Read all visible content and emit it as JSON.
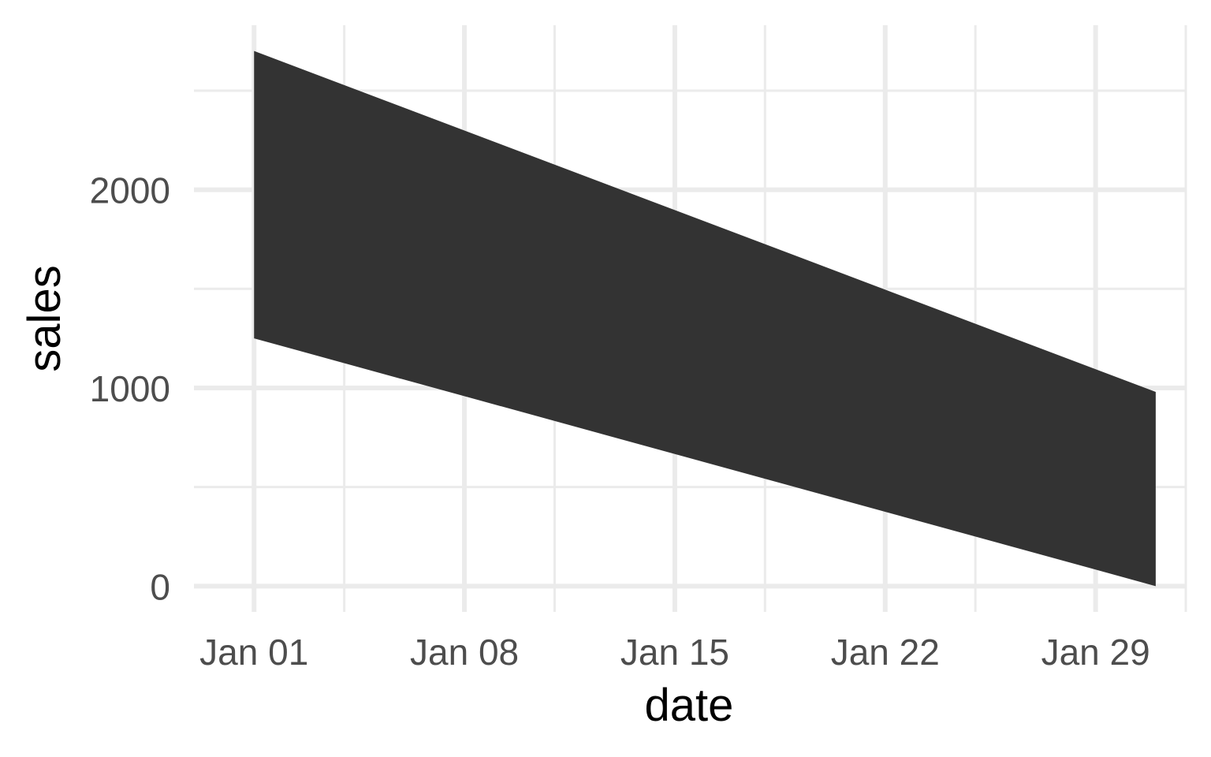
{
  "chart_data": {
    "type": "area",
    "xlabel": "date",
    "ylabel": "sales",
    "x_type": "date",
    "xlim": [
      "2023-12-30",
      "2024-02-01"
    ],
    "ylim": [
      -130,
      2830
    ],
    "x_ticks": [
      {
        "date": "2024-01-01",
        "label": "Jan 01"
      },
      {
        "date": "2024-01-08",
        "label": "Jan 08"
      },
      {
        "date": "2024-01-15",
        "label": "Jan 15"
      },
      {
        "date": "2024-01-22",
        "label": "Jan 22"
      },
      {
        "date": "2024-01-29",
        "label": "Jan 29"
      }
    ],
    "x_minor_ticks": [
      "2024-01-04",
      "2024-01-11",
      "2024-01-18",
      "2024-01-25",
      "2024-02-01"
    ],
    "y_ticks": [
      0,
      1000,
      2000
    ],
    "y_minor_ticks": [
      500,
      1500,
      2500
    ],
    "grid": true,
    "fill_color": "#333333",
    "grid_color": "#ebebeb",
    "series": [
      {
        "x": [
          "2024-01-01",
          "2024-01-31"
        ],
        "ymin": [
          1250,
          0
        ],
        "ymax": [
          2700,
          980
        ]
      }
    ]
  }
}
